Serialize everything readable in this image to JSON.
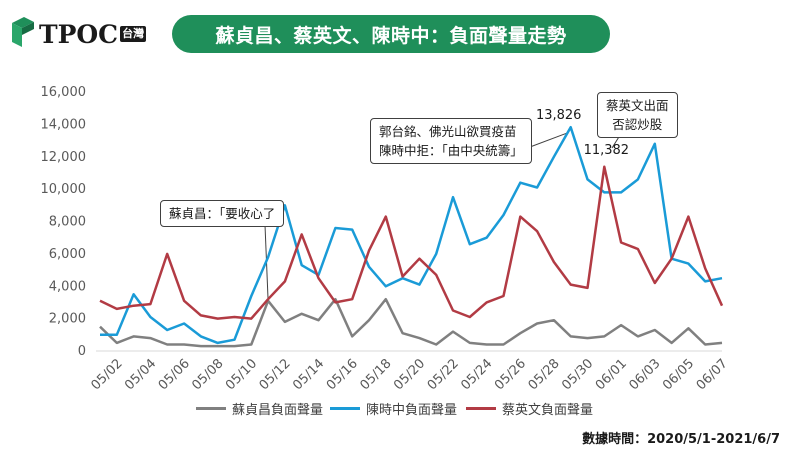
{
  "header": {
    "logo_text": "TPOC",
    "logo_badge": "台灣",
    "title": "蘇貞昌、蔡英文、陳時中：負面聲量走勢"
  },
  "source_text": "數據時間：2020/5/1-2021/6/7",
  "callouts": {
    "su": "蘇貞昌：「要收心了",
    "chen_line1": "郭台銘、佛光山欲買疫苗",
    "chen_line2": "陳時中拒：「由中央統籌」",
    "tsai_line1": "蔡英文出面",
    "tsai_line2": "否認炒股",
    "peak_chen": "13,826",
    "peak_tsai": "11,382"
  },
  "colors": {
    "su": "#808080",
    "chen": "#1a9bd7",
    "tsai": "#b23b44",
    "title_bg": "#1f8f5a"
  },
  "chart_data": {
    "type": "line",
    "ylim": [
      0,
      16000
    ],
    "yticks": [
      0,
      2000,
      4000,
      6000,
      8000,
      10000,
      12000,
      14000,
      16000
    ],
    "ytick_labels": [
      "0",
      "2,000",
      "4,000",
      "6,000",
      "8,000",
      "10,000",
      "12,000",
      "14,000",
      "16,000"
    ],
    "x": [
      "05/01",
      "05/02",
      "05/03",
      "05/04",
      "05/05",
      "05/06",
      "05/07",
      "05/08",
      "05/09",
      "05/10",
      "05/11",
      "05/12",
      "05/13",
      "05/14",
      "05/15",
      "05/16",
      "05/17",
      "05/18",
      "05/19",
      "05/20",
      "05/21",
      "05/22",
      "05/23",
      "05/24",
      "05/25",
      "05/26",
      "05/27",
      "05/28",
      "05/29",
      "05/30",
      "05/31",
      "06/01",
      "06/02",
      "06/03",
      "06/04",
      "06/05",
      "06/06",
      "06/07"
    ],
    "xtick_labels": [
      "05/02",
      "05/04",
      "05/06",
      "05/08",
      "05/10",
      "05/12",
      "05/14",
      "05/16",
      "05/18",
      "05/20",
      "05/22",
      "05/24",
      "05/26",
      "05/28",
      "05/30",
      "06/01",
      "06/03",
      "06/05",
      "06/07"
    ],
    "grid": false,
    "legend_position": "bottom",
    "series": [
      {
        "name": "蘇貞昌負面聲量",
        "color": "#808080",
        "values": [
          1500,
          500,
          900,
          800,
          400,
          400,
          300,
          300,
          300,
          400,
          3100,
          1800,
          2300,
          1900,
          3200,
          900,
          1900,
          3200,
          1100,
          800,
          400,
          1200,
          500,
          400,
          400,
          1100,
          1700,
          1900,
          900,
          800,
          900,
          1600,
          900,
          1300,
          500,
          1400,
          400,
          500
        ]
      },
      {
        "name": "陳時中負面聲量",
        "color": "#1a9bd7",
        "values": [
          1000,
          1000,
          3500,
          2100,
          1300,
          1700,
          900,
          500,
          700,
          3400,
          5800,
          9000,
          5300,
          4700,
          7600,
          7500,
          5200,
          4000,
          4500,
          4100,
          6000,
          9500,
          6600,
          7000,
          8400,
          10400,
          10100,
          12000,
          13826,
          10600,
          9800,
          9800,
          10600,
          12800,
          5700,
          5400,
          4300,
          4500
        ]
      },
      {
        "name": "蔡英文負面聲量",
        "color": "#b23b44",
        "values": [
          3100,
          2600,
          2800,
          2900,
          6000,
          3100,
          2200,
          2000,
          2100,
          2000,
          3200,
          4300,
          7200,
          4500,
          3000,
          3200,
          6200,
          8300,
          4600,
          5700,
          4700,
          2500,
          2100,
          3000,
          3400,
          8300,
          7400,
          5500,
          4100,
          3900,
          11382,
          6700,
          6300,
          4200,
          5700,
          8300,
          5100,
          2800
        ]
      }
    ]
  }
}
